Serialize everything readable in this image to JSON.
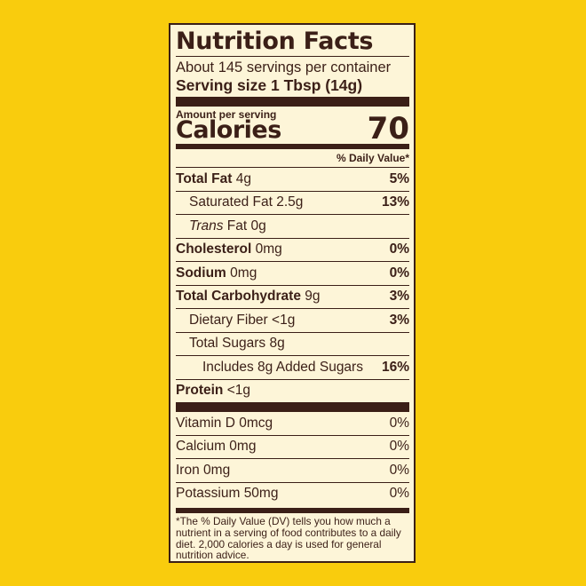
{
  "label": {
    "title": "Nutrition Facts",
    "servings_per_container": "About 145 servings per container",
    "serving_size": "Serving size 1 Tbsp (14g)",
    "amount_per_serving": "Amount per serving",
    "calories_label": "Calories",
    "calories_value": "70",
    "dv_header": "% Daily Value*",
    "nutrients": [
      {
        "name": "Total Fat",
        "amount": "4g",
        "dv": "5%"
      },
      {
        "name": "Saturated Fat",
        "amount": "2.5g",
        "dv": "13%"
      },
      {
        "name_italic": "Trans",
        "name": " Fat",
        "amount": "0g",
        "dv": ""
      },
      {
        "name": "Cholesterol",
        "amount": "0mg",
        "dv": "0%"
      },
      {
        "name": "Sodium",
        "amount": "0mg",
        "dv": "0%"
      },
      {
        "name": "Total Carbohydrate",
        "amount": "9g",
        "dv": "3%"
      },
      {
        "name": "Dietary Fiber",
        "amount": "<1g",
        "dv": "3%"
      },
      {
        "name": "Total Sugars",
        "amount": "8g",
        "dv": ""
      },
      {
        "name": "Includes 8g Added Sugars",
        "amount": "",
        "dv": "16%"
      },
      {
        "name": "Protein",
        "amount": "<1g",
        "dv": ""
      }
    ],
    "vitamins": [
      {
        "name": "Vitamin D",
        "amount": "0mcg",
        "dv": "0%"
      },
      {
        "name": "Calcium",
        "amount": "0mg",
        "dv": "0%"
      },
      {
        "name": "Iron",
        "amount": "0mg",
        "dv": "0%"
      },
      {
        "name": "Potassium",
        "amount": "50mg",
        "dv": "0%"
      }
    ],
    "footnote": "*The % Daily Value (DV) tells you how much a nutrient in a serving of food contributes to a daily diet. 2,000 calories a day is used for general nutrition advice."
  },
  "colors": {
    "background": "#f9cc0d",
    "label_bg": "#fdf5d8",
    "ink": "#3b1f17"
  }
}
